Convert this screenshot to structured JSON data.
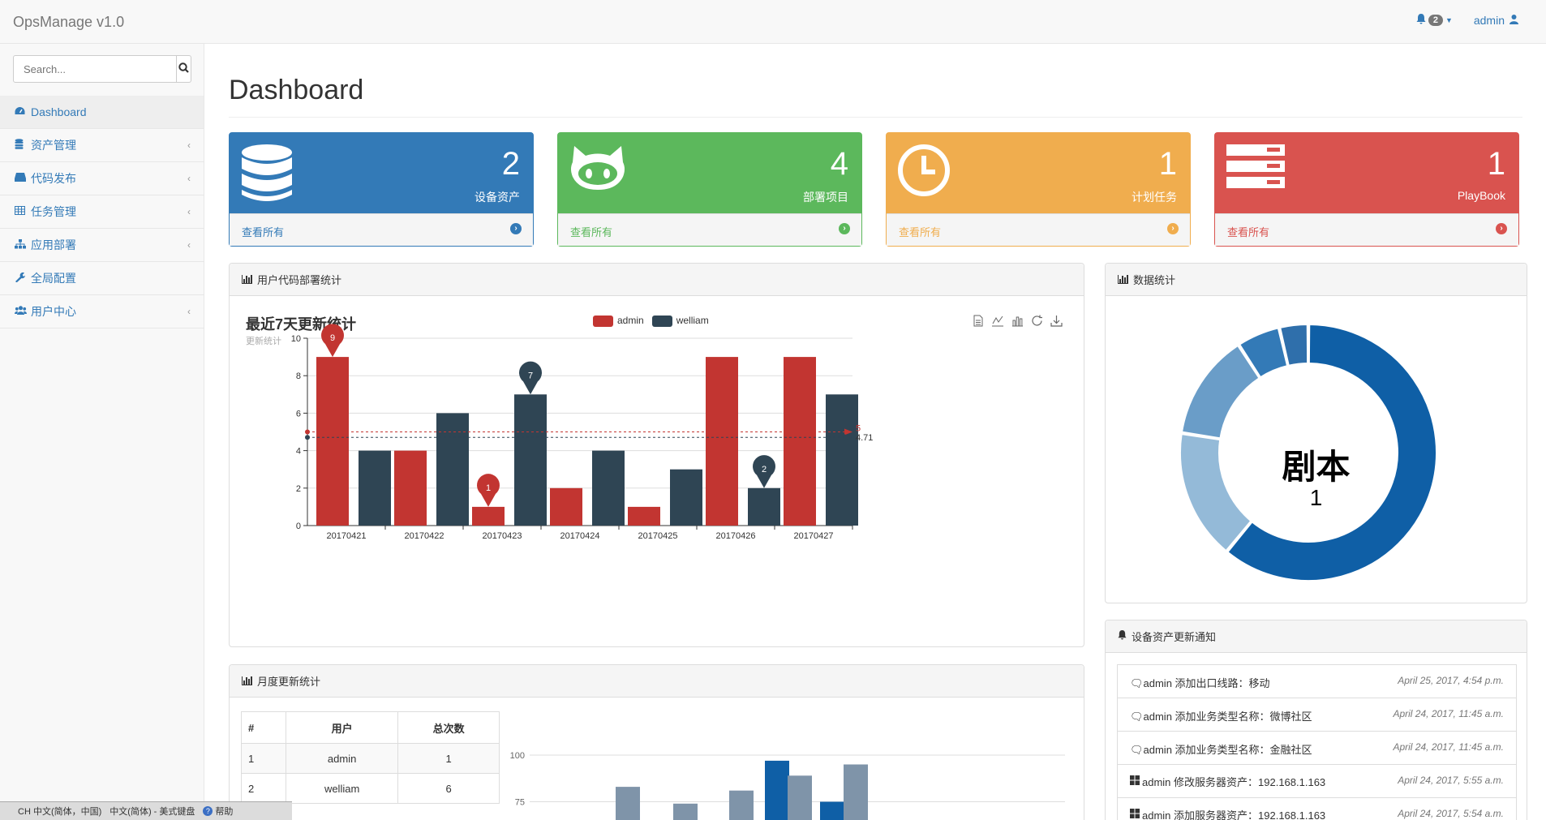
{
  "app": {
    "brand": "OpsManage v1.0"
  },
  "topnav": {
    "alert_count": "2",
    "user": "admin"
  },
  "sidebar": {
    "search_placeholder": "Search...",
    "items": [
      {
        "label": "Dashboard",
        "icon": "dashboard-icon",
        "active": true
      },
      {
        "label": "资产管理",
        "icon": "database-icon"
      },
      {
        "label": "代码发布",
        "icon": "hdd-icon"
      },
      {
        "label": "任务管理",
        "icon": "table-icon"
      },
      {
        "label": "应用部署",
        "icon": "sitemap-icon"
      },
      {
        "label": "全局配置",
        "icon": "wrench-icon"
      },
      {
        "label": "用户中心",
        "icon": "users-icon"
      }
    ]
  },
  "main": {
    "title": "Dashboard"
  },
  "stats": [
    {
      "value": "2",
      "label": "设备资产",
      "link": "查看所有",
      "icon": "database-icon",
      "color": "#337ab7"
    },
    {
      "value": "4",
      "label": "部署项目",
      "link": "查看所有",
      "icon": "github-icon",
      "color": "#5cb85c"
    },
    {
      "value": "1",
      "label": "计划任务",
      "link": "查看所有",
      "icon": "clock-icon",
      "color": "#f0ad4e"
    },
    {
      "value": "1",
      "label": "PlayBook",
      "link": "查看所有",
      "icon": "server-icon",
      "color": "#d9534f"
    }
  ],
  "panels": {
    "deploy_stats": "用户代码部署统计",
    "data_stats": "数据统计",
    "asset_notices": "设备资产更新通知",
    "monthly": "月度更新统计"
  },
  "chart_data": [
    {
      "type": "bar",
      "title": "最近7天更新统计",
      "subtitle": "更新统计",
      "categories": [
        "20170421",
        "20170422",
        "20170423",
        "20170424",
        "20170425",
        "20170426",
        "20170427"
      ],
      "series": [
        {
          "name": "admin",
          "values": [
            9,
            4,
            1,
            2,
            1,
            9,
            9
          ],
          "color": "#c23531",
          "average": 5
        },
        {
          "name": "welliam",
          "values": [
            4,
            6,
            7,
            4,
            3,
            2,
            7
          ],
          "color": "#2f4554",
          "average": 4.71
        }
      ],
      "mark_points": [
        {
          "series": "admin",
          "category": "20170421",
          "value": 9
        },
        {
          "series": "admin",
          "category": "20170423",
          "value": 1
        },
        {
          "series": "welliam",
          "category": "20170423",
          "value": 7
        },
        {
          "series": "welliam",
          "category": "20170426",
          "value": 2
        }
      ],
      "mark_lines": [
        {
          "series": "admin",
          "label": "5"
        },
        {
          "series": "welliam",
          "label": "4.71"
        }
      ],
      "ylim": [
        0,
        10
      ],
      "yticks": [
        0,
        2,
        4,
        6,
        8,
        10
      ],
      "grid": true,
      "legend": "top-center"
    },
    {
      "type": "pie",
      "title": "剧本",
      "center_value": "1",
      "values": [
        1,
        0.27,
        0.22,
        0.09,
        0.06
      ],
      "colors": [
        "#0f5fa6",
        "#94bad8",
        "#6a9dc8",
        "#337ab7",
        "#2f6fab"
      ]
    },
    {
      "type": "bar",
      "yticks": [
        75,
        100
      ],
      "values_visible": [
        {
          "color": "#7f94a9",
          "value": 83
        },
        {
          "color": "#7f94a9",
          "value": 74
        },
        {
          "color": "#7f94a9",
          "value": 81
        },
        {
          "color": "#0f5fa6",
          "value": 97
        },
        {
          "color": "#7f94a9",
          "value": 89
        },
        {
          "color": "#0f5fa6",
          "value": 75
        },
        {
          "color": "#7f94a9",
          "value": 95
        }
      ]
    }
  ],
  "notices": [
    {
      "icon": "comments-icon",
      "text": "admin 添加出口线路：移动",
      "time": "April 25, 2017, 4:54 p.m."
    },
    {
      "icon": "comments-icon",
      "text": "admin 添加业务类型名称：微博社区",
      "time": "April 24, 2017, 11:45 a.m."
    },
    {
      "icon": "comments-icon",
      "text": "admin 添加业务类型名称：金融社区",
      "time": "April 24, 2017, 11:45 a.m."
    },
    {
      "icon": "windows-icon",
      "text": "admin 修改服务器资产：192.168.1.163",
      "time": "April 24, 2017, 5:55 a.m."
    },
    {
      "icon": "windows-icon",
      "text": "admin 添加服务器资产：192.168.1.163",
      "time": "April 24, 2017, 5:54 a.m."
    }
  ],
  "monthly_table": {
    "headers": [
      "#",
      "用户",
      "总次数"
    ],
    "rows": [
      [
        "1",
        "admin",
        "1"
      ],
      [
        "2",
        "welliam",
        "6"
      ]
    ]
  },
  "ime_bar": {
    "lang": "CH 中文(简体，中国)",
    "keyboard": "中文(简体) - 美式键盘",
    "help": "帮助"
  }
}
